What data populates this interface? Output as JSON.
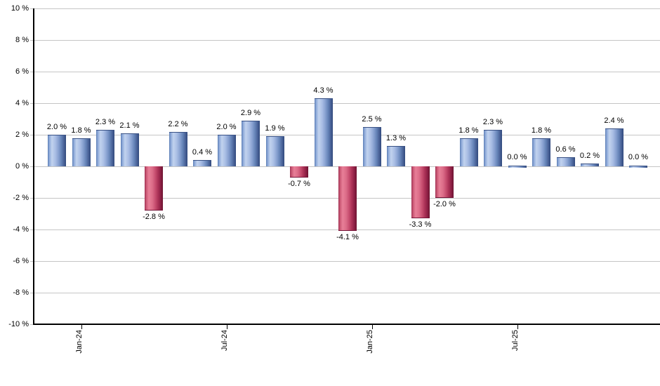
{
  "chart": {
    "y_axis_ticks": [
      "10 %",
      "8 %",
      "6 %",
      "4 %",
      "2 %",
      "0 %",
      "-2 %",
      "-4 %",
      "-6 %",
      "-8 %",
      "-10 %"
    ],
    "x_axis_ticks": [
      {
        "label": "Jan-24",
        "bar_index": 1
      },
      {
        "label": "Jul-24",
        "bar_index": 7
      },
      {
        "label": "Jan-25",
        "bar_index": 13
      },
      {
        "label": "Jul-25",
        "bar_index": 19
      }
    ],
    "colors": {
      "positive_bar": "#7E9CD2",
      "positive_bar_dark_edge": "#31497C",
      "negative_bar": "#C64D6F",
      "negative_bar_dark_edge": "#6D1331",
      "gridline": "#C5C5C5",
      "axis": "#000000",
      "label_text": "#000000",
      "background": "#FFFFFF"
    }
  },
  "chart_data": {
    "type": "bar",
    "title": "",
    "xlabel": "",
    "ylabel": "",
    "ylim": [
      -10,
      10
    ],
    "y_tick_step": 2,
    "grid": true,
    "legend": "none",
    "values": [
      2.0,
      1.8,
      2.3,
      2.1,
      -2.8,
      2.2,
      0.4,
      2.0,
      2.9,
      1.9,
      -0.7,
      4.3,
      -4.1,
      2.5,
      1.3,
      -3.3,
      -2.0,
      1.8,
      2.3,
      0.0,
      1.8,
      0.6,
      0.2,
      2.4,
      0.0
    ],
    "value_labels": [
      "2.0 %",
      "1.8 %",
      "2.3 %",
      "2.1 %",
      "-2.8 %",
      "2.2 %",
      "0.4 %",
      "2.0 %",
      "2.9 %",
      "1.9 %",
      "-0.7 %",
      "4.3 %",
      "-4.1 %",
      "2.5 %",
      "1.3 %",
      "-3.3 %",
      "-2.0 %",
      "1.8 %",
      "2.3 %",
      "0.0 %",
      "1.8 %",
      "0.6 %",
      "0.2 %",
      "2.4 %",
      "0.0 %"
    ],
    "x_tick_labels": [
      "Jan-24",
      "Jul-24",
      "Jan-25",
      "Jul-25"
    ],
    "x_tick_bar_indices": [
      1,
      7,
      13,
      19
    ],
    "positive_color_semantic": "positive-month-return",
    "negative_color_semantic": "negative-month-return"
  }
}
